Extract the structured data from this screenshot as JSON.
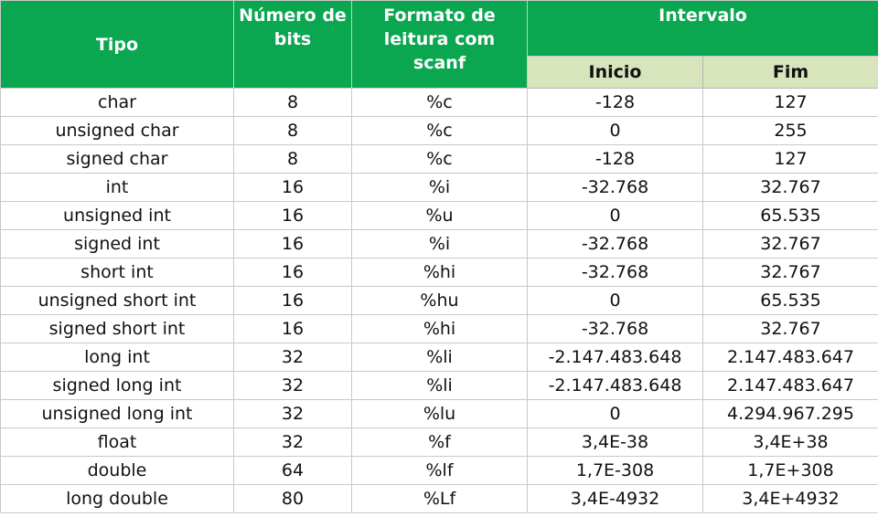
{
  "header": {
    "tipo": "Tipo",
    "numero_bits": "Número de bits",
    "formato": "Formato de leitura com scanf",
    "intervalo": "Intervalo",
    "inicio": "Inicio",
    "fim": "Fim"
  },
  "rows": [
    {
      "tipo": "char",
      "bits": "8",
      "formato": "%c",
      "inicio": "-128",
      "fim": "127"
    },
    {
      "tipo": "unsigned char",
      "bits": "8",
      "formato": "%c",
      "inicio": "0",
      "fim": "255"
    },
    {
      "tipo": "signed char",
      "bits": "8",
      "formato": "%c",
      "inicio": "-128",
      "fim": "127"
    },
    {
      "tipo": "int",
      "bits": "16",
      "formato": "%i",
      "inicio": "-32.768",
      "fim": "32.767"
    },
    {
      "tipo": "unsigned int",
      "bits": "16",
      "formato": "%u",
      "inicio": "0",
      "fim": "65.535"
    },
    {
      "tipo": "signed int",
      "bits": "16",
      "formato": "%i",
      "inicio": "-32.768",
      "fim": "32.767"
    },
    {
      "tipo": "short int",
      "bits": "16",
      "formato": "%hi",
      "inicio": "-32.768",
      "fim": "32.767"
    },
    {
      "tipo": "unsigned short int",
      "bits": "16",
      "formato": "%hu",
      "inicio": "0",
      "fim": "65.535"
    },
    {
      "tipo": "signed short int",
      "bits": "16",
      "formato": "%hi",
      "inicio": "-32.768",
      "fim": "32.767"
    },
    {
      "tipo": "long int",
      "bits": "32",
      "formato": "%li",
      "inicio": "-2.147.483.648",
      "fim": "2.147.483.647"
    },
    {
      "tipo": "signed long int",
      "bits": "32",
      "formato": "%li",
      "inicio": "-2.147.483.648",
      "fim": "2.147.483.647"
    },
    {
      "tipo": "unsigned long int",
      "bits": "32",
      "formato": "%lu",
      "inicio": "0",
      "fim": "4.294.967.295"
    },
    {
      "tipo": "float",
      "bits": "32",
      "formato": "%f",
      "inicio": "3,4E-38",
      "fim": "3,4E+38"
    },
    {
      "tipo": "double",
      "bits": "64",
      "formato": "%lf",
      "inicio": "1,7E-308",
      "fim": "1,7E+308"
    },
    {
      "tipo": "long double",
      "bits": "80",
      "formato": "%Lf",
      "inicio": "3,4E-4932",
      "fim": "3,4E+4932"
    }
  ],
  "colors": {
    "header_green": "#0aa650",
    "subheader_green": "#d7e4bc",
    "border": "#c9c9c9"
  }
}
